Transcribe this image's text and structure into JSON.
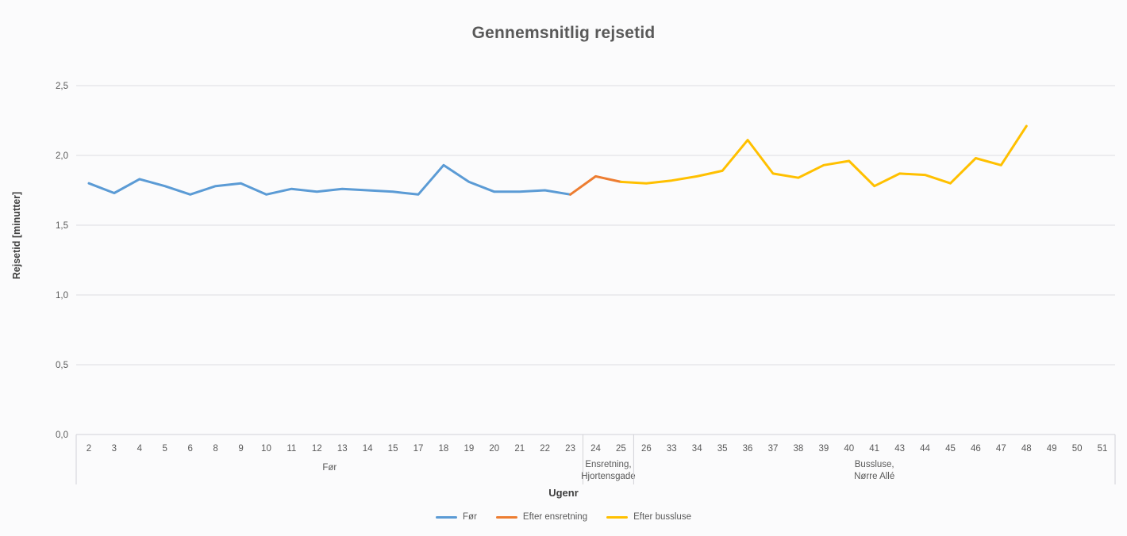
{
  "title": "Gennemsnitlig rejsetid",
  "axes": {
    "y_title": "Rejsetid [minutter]",
    "x_title": "Ugenr"
  },
  "legend": {
    "items": [
      {
        "label": "Før",
        "color": "#5B9BD5"
      },
      {
        "label": "Efter ensretning",
        "color": "#ED7D31"
      },
      {
        "label": "Efter bussluse",
        "color": "#FFC000"
      }
    ]
  },
  "colors": {
    "background": "#FBFBFC",
    "gridline": "#DEDEE2",
    "axis_line": "#D2D2D7",
    "title_text": "#595959",
    "tick_text": "#595959",
    "axis_title_text": "#404040",
    "series_blue": "#5B9BD5",
    "series_orange": "#ED7D31",
    "series_yellow": "#FFC000"
  },
  "chart_data": {
    "type": "line",
    "title": "Gennemsnitlig rejsetid",
    "xlabel": "Ugenr",
    "ylabel": "Rejsetid [minutter]",
    "ylim": [
      0,
      2.5
    ],
    "ytick_interval": 0.5,
    "ytick_labels": [
      "0,0",
      "0,5",
      "1,0",
      "1,5",
      "2,0",
      "2,5"
    ],
    "grid": true,
    "legend_position": "bottom",
    "categories": [
      "2",
      "3",
      "4",
      "5",
      "6",
      "8",
      "9",
      "10",
      "11",
      "12",
      "13",
      "14",
      "15",
      "17",
      "18",
      "19",
      "20",
      "21",
      "22",
      "23",
      "24",
      "25",
      "26",
      "33",
      "34",
      "35",
      "36",
      "37",
      "38",
      "39",
      "40",
      "41",
      "43",
      "44",
      "45",
      "46",
      "47",
      "48",
      "49",
      "50",
      "51"
    ],
    "category_groups": [
      {
        "label_lines": [
          "Før"
        ],
        "start": "2",
        "end": "23"
      },
      {
        "label_lines": [
          "Ensretning,",
          "Hjortensgade"
        ],
        "start": "24",
        "end": "25"
      },
      {
        "label_lines": [
          "Bussluse,",
          "Nørre Allé"
        ],
        "start": "26",
        "end": "51"
      }
    ],
    "series": [
      {
        "name": "Før",
        "color": "#5B9BD5",
        "weeks": [
          "2",
          "3",
          "4",
          "5",
          "6",
          "8",
          "9",
          "10",
          "11",
          "12",
          "13",
          "14",
          "15",
          "17",
          "18",
          "19",
          "20",
          "21",
          "22",
          "23"
        ],
        "values": [
          1.8,
          1.73,
          1.83,
          1.78,
          1.72,
          1.78,
          1.8,
          1.72,
          1.76,
          1.74,
          1.76,
          1.75,
          1.74,
          1.72,
          1.93,
          1.81,
          1.74,
          1.74,
          1.75,
          1.72
        ]
      },
      {
        "name": "Efter ensretning",
        "color": "#ED7D31",
        "weeks": [
          "23",
          "24",
          "25"
        ],
        "values": [
          1.72,
          1.85,
          1.81
        ]
      },
      {
        "name": "Efter bussluse",
        "color": "#FFC000",
        "weeks": [
          "25",
          "26",
          "33",
          "34",
          "35",
          "36",
          "37",
          "38",
          "39",
          "40",
          "41",
          "43",
          "44",
          "45",
          "46",
          "47",
          "48"
        ],
        "values": [
          1.81,
          1.8,
          1.82,
          1.85,
          1.89,
          2.11,
          1.87,
          1.84,
          1.93,
          1.96,
          1.78,
          1.87,
          1.86,
          1.8,
          1.98,
          1.93,
          2.21
        ]
      }
    ]
  }
}
